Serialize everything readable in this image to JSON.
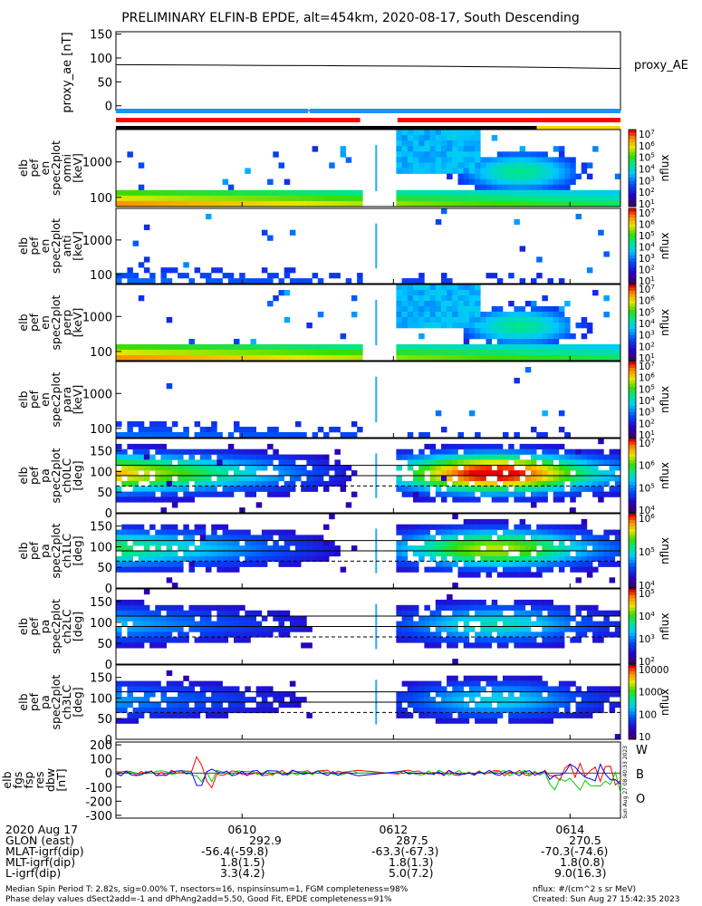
{
  "chart_data": {
    "type": "heatmap",
    "title": "PRELIMINARY ELFIN-B EPDE, alt=454km, 2020-08-17, South Descending",
    "proxy_ae": {
      "type": "line",
      "ylabel": "proxy_ae [nT]",
      "legend": "proxy_AE",
      "yticks": [
        "150",
        "100",
        "50",
        "0"
      ],
      "ylim": [
        -10,
        155
      ],
      "x": [
        0,
        0.1,
        0.2,
        0.3,
        0.4,
        0.5,
        0.6,
        0.7,
        0.8,
        0.9,
        1.0
      ],
      "y": [
        86,
        85.5,
        85,
        84.5,
        84,
        83.5,
        83,
        82,
        81,
        79.5,
        78
      ]
    },
    "status_bars": {
      "row1": [
        {
          "from": 0,
          "to": 0.384,
          "color": "#1e90ff"
        },
        {
          "from": 0.384,
          "to": 1,
          "color": "#1e90ff"
        }
      ],
      "row2": [
        {
          "from": 0,
          "to": 0.484,
          "color": "#ff0000"
        },
        {
          "from": 0.558,
          "to": 1,
          "color": "#ff0000"
        }
      ],
      "row3": [
        {
          "from": 0,
          "to": 0.834,
          "color": "#000000"
        },
        {
          "from": 0.834,
          "to": 1,
          "color": "#ffd700"
        }
      ]
    },
    "panels": [
      {
        "id": "en",
        "ylabel_lines": [
          "elb",
          "pef",
          "en",
          "spec2plot",
          "omni",
          "[keV]"
        ],
        "yticks": [
          "1000",
          "100"
        ],
        "log": true,
        "color_ticks": [
          "10^7",
          "10^6",
          "10^5",
          "10^4",
          "10^3",
          "10^2",
          "10^1"
        ],
        "unit": "nflux",
        "intensity": 1.0
      },
      {
        "id": "ant",
        "ylabel_lines": [
          "elb",
          "pef",
          "en",
          "spec2plot",
          "anti",
          "[keV]"
        ],
        "yticks": [
          "1000",
          "100"
        ],
        "log": true,
        "color_ticks": [
          "10^7",
          "10^6",
          "10^5",
          "10^4",
          "10^3",
          "10^2",
          "10^1"
        ],
        "unit": "nflux",
        "intensity": 0.35
      },
      {
        "id": "perp",
        "ylabel_lines": [
          "elb",
          "pef",
          "en",
          "spec2plot",
          "perp",
          "[keV]"
        ],
        "yticks": [
          "1000",
          "100"
        ],
        "log": true,
        "color_ticks": [
          "10^7",
          "10^6",
          "10^5",
          "10^4",
          "10^3",
          "10^2",
          "10^1"
        ],
        "unit": "nflux",
        "intensity": 1.0
      },
      {
        "id": "para",
        "ylabel_lines": [
          "elb",
          "pef",
          "en",
          "spec2plot",
          "para",
          "[keV]"
        ],
        "yticks": [
          "1000",
          "100"
        ],
        "log": true,
        "color_ticks": [
          "10^7",
          "10^6",
          "10^5",
          "10^4",
          "10^3",
          "10^2",
          "10^1"
        ],
        "unit": "nflux",
        "intensity": 0.35
      },
      {
        "id": "ch0",
        "ylabel_lines": [
          "elb",
          "pef",
          "pa",
          "spec2plot",
          "ch0LC",
          "[deg]"
        ],
        "yticks": [
          "150",
          "100",
          "50",
          "0"
        ],
        "log": false,
        "color_ticks": [
          "10^7",
          "10^6",
          "10^5",
          "10^4"
        ],
        "unit": "nflux",
        "intensity": 1.0
      },
      {
        "id": "ch1",
        "ylabel_lines": [
          "elb",
          "pef",
          "pa",
          "spec2plot",
          "ch1LC",
          "[deg]"
        ],
        "yticks": [
          "150",
          "100",
          "50",
          "0"
        ],
        "log": false,
        "color_ticks": [
          "10^6",
          "10^5",
          "10^4"
        ],
        "unit": "nflux",
        "intensity": 0.7
      },
      {
        "id": "ch2",
        "ylabel_lines": [
          "elb",
          "pef",
          "pa",
          "spec2plot",
          "ch2LC",
          "[deg]"
        ],
        "yticks": [
          "150",
          "100",
          "50",
          "0"
        ],
        "log": false,
        "color_ticks": [
          "10^5",
          "10^4",
          "10^3",
          "10^2"
        ],
        "unit": "nflux",
        "intensity": 0.45
      },
      {
        "id": "ch3",
        "ylabel_lines": [
          "elb",
          "pef",
          "pa",
          "spec2plot",
          "ch3LC",
          "[deg]"
        ],
        "yticks": [
          "150",
          "100",
          "50",
          "0"
        ],
        "log": false,
        "color_ticks": [
          "10000",
          "1000",
          "100",
          "10"
        ],
        "unit": "nflux",
        "intensity": 0.4
      }
    ],
    "dbw": {
      "type": "line",
      "ylabel_lines": [
        "elb",
        "fgs",
        "fsp",
        "res",
        "dbw",
        "[nT]"
      ],
      "yticks": [
        "200",
        "100",
        "0",
        "-100",
        "-200",
        "-300"
      ],
      "ylim": [
        -320,
        220
      ],
      "series": [
        {
          "name": "W",
          "color": "#ff0000"
        },
        {
          "name": "B",
          "color": "#00cc00"
        },
        {
          "name": "O",
          "color": "#0000ff"
        }
      ],
      "side_text": "Sun Aug 27 08:40:33 2023"
    },
    "x_ticks": [
      "0610",
      "0612",
      "0614"
    ]
  },
  "ephemeris": {
    "date": "2020 Aug 17",
    "rows": [
      {
        "label": "GLON (east)",
        "vals": [
          "292.9",
          "287.5",
          "270.5"
        ]
      },
      {
        "label": "MLAT-igrf(dip)",
        "vals": [
          "-56.4(-59.8)",
          "-63.3(-67.3)",
          "-70.3(-74.6)"
        ]
      },
      {
        "label": "MLT-igrf(dip)",
        "vals": [
          "1.8(1.5)",
          "1.8(1.3)",
          "1.8(0.8)"
        ]
      },
      {
        "label": "L-igrf(dip)",
        "vals": [
          "3.3(4.2)",
          "5.0(7.2)",
          "9.0(16.3)"
        ]
      }
    ]
  },
  "footer": {
    "line1_left": "Median Spin Period T: 2.82s, sig=0.00% T, nsectors=16, nspinsinsum=1, FGM completeness=98%",
    "line2_left": "Phase delay values dSect2add=-1 and dPhAng2add=5.50, Good Fit, EPDE completeness=91%",
    "line1_right": "nflux: #/(cm^2 s sr MeV)",
    "line2_right": "Created: Sun Aug 27 15:42:35 2023"
  }
}
